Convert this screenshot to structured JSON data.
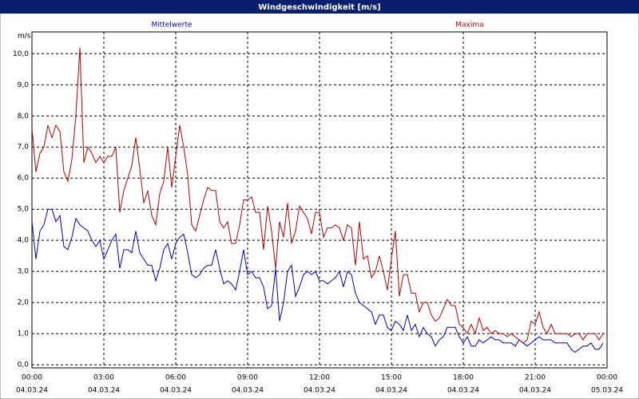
{
  "chart_data": {
    "type": "line",
    "title": "Windgeschwindigkeit [m/s]",
    "y_label": "m/s",
    "xlim": [
      0,
      1440
    ],
    "xticks": [
      {
        "value": 0,
        "label": "00:00"
      },
      {
        "value": 180,
        "label": "03:00"
      },
      {
        "value": 360,
        "label": "06:00"
      },
      {
        "value": 540,
        "label": "09:00"
      },
      {
        "value": 720,
        "label": "12:00"
      },
      {
        "value": 900,
        "label": "15:00"
      },
      {
        "value": 1080,
        "label": "18:00"
      },
      {
        "value": 1260,
        "label": "21:00"
      },
      {
        "value": 1440,
        "label": "00:00"
      }
    ],
    "xtick_dates": [
      "04.03.24",
      "04.03.24",
      "04.03.24",
      "04.03.24",
      "04.03.24",
      "04.03.24",
      "04.03.24",
      "04.03.24",
      "05.03.24"
    ],
    "ylim": [
      -0.1,
      10.7
    ],
    "yticks": [
      {
        "value": 0,
        "label": "0,0"
      },
      {
        "value": 1,
        "label": "1,0"
      },
      {
        "value": 2,
        "label": "2,0"
      },
      {
        "value": 3,
        "label": "3,0"
      },
      {
        "value": 4,
        "label": "4,0"
      },
      {
        "value": 5,
        "label": "5,0"
      },
      {
        "value": 6,
        "label": "6,0"
      },
      {
        "value": 7,
        "label": "7,0"
      },
      {
        "value": 8,
        "label": "8,0"
      },
      {
        "value": 9,
        "label": "9,0"
      },
      {
        "value": 10,
        "label": "10,0"
      }
    ],
    "grid": true,
    "x": [
      0,
      10,
      20,
      30,
      40,
      50,
      60,
      70,
      80,
      90,
      100,
      110,
      120,
      130,
      140,
      150,
      160,
      170,
      180,
      190,
      200,
      210,
      220,
      230,
      240,
      250,
      260,
      270,
      280,
      290,
      300,
      310,
      320,
      330,
      340,
      350,
      360,
      370,
      380,
      390,
      400,
      410,
      420,
      430,
      440,
      450,
      460,
      470,
      480,
      490,
      500,
      510,
      520,
      530,
      540,
      550,
      560,
      570,
      580,
      590,
      600,
      610,
      620,
      630,
      640,
      650,
      660,
      670,
      680,
      690,
      700,
      710,
      720,
      730,
      740,
      750,
      760,
      770,
      780,
      790,
      800,
      810,
      820,
      830,
      840,
      850,
      860,
      870,
      880,
      890,
      900,
      910,
      920,
      930,
      940,
      950,
      960,
      970,
      980,
      990,
      1000,
      1010,
      1020,
      1030,
      1040,
      1050,
      1060,
      1070,
      1080,
      1090,
      1100,
      1110,
      1120,
      1130,
      1140,
      1150,
      1160,
      1170,
      1180,
      1190,
      1200,
      1210,
      1220,
      1230,
      1240,
      1250,
      1260,
      1270,
      1280,
      1290,
      1300,
      1310,
      1320,
      1330,
      1340,
      1350,
      1360,
      1370,
      1380,
      1390,
      1400,
      1410,
      1420,
      1430
    ],
    "series": [
      {
        "name": "Mittelwerte",
        "color": "#0000c8",
        "values": [
          4.6,
          3.4,
          4.3,
          4.5,
          5.0,
          5.0,
          4.6,
          4.8,
          3.8,
          3.7,
          4.1,
          4.7,
          4.5,
          4.4,
          4.3,
          4.0,
          3.8,
          4.0,
          3.4,
          3.7,
          4.0,
          4.2,
          3.1,
          3.7,
          3.7,
          3.6,
          4.3,
          3.6,
          3.4,
          3.2,
          3.2,
          2.7,
          3.1,
          3.7,
          3.9,
          3.4,
          3.9,
          4.1,
          4.2,
          3.6,
          2.9,
          2.8,
          2.9,
          3.1,
          3.2,
          3.2,
          3.7,
          3.1,
          2.6,
          2.7,
          2.6,
          2.4,
          3.0,
          3.7,
          2.9,
          3.0,
          2.8,
          2.8,
          2.5,
          1.8,
          1.9,
          3.1,
          1.4,
          2.0,
          3.0,
          3.2,
          2.2,
          2.5,
          2.9,
          3.0,
          2.9,
          3.0,
          2.7,
          2.7,
          2.6,
          2.7,
          2.8,
          3.0,
          2.5,
          3.0,
          2.9,
          2.3,
          2.0,
          1.9,
          1.8,
          1.7,
          1.3,
          1.6,
          1.6,
          1.2,
          1.1,
          1.4,
          1.3,
          1.1,
          1.6,
          1.1,
          1.3,
          0.9,
          1.2,
          1.0,
          0.9,
          0.6,
          0.8,
          0.9,
          1.2,
          1.2,
          1.2,
          0.9,
          0.7,
          0.9,
          0.6,
          0.6,
          0.8,
          0.7,
          0.8,
          0.9,
          0.8,
          0.8,
          0.7,
          0.7,
          0.7,
          0.6,
          0.8,
          0.7,
          0.6,
          0.7,
          0.8,
          0.9,
          0.8,
          0.8,
          0.8,
          0.7,
          0.7,
          0.7,
          0.7,
          0.5,
          0.4,
          0.5,
          0.6,
          0.6,
          0.7,
          0.5,
          0.5,
          0.7
        ]
      },
      {
        "name": "Maxima",
        "color": "#b40000",
        "values": [
          7.6,
          6.2,
          6.8,
          7.0,
          7.7,
          7.3,
          7.7,
          7.5,
          6.2,
          5.9,
          6.6,
          8.0,
          10.2,
          6.5,
          7.0,
          6.8,
          6.5,
          6.7,
          6.5,
          6.7,
          6.7,
          7.0,
          4.9,
          5.6,
          6.0,
          6.4,
          7.3,
          6.3,
          5.2,
          5.6,
          4.8,
          4.5,
          5.5,
          5.9,
          7.0,
          5.7,
          6.7,
          7.7,
          7.0,
          6.1,
          4.5,
          4.3,
          4.8,
          5.3,
          5.7,
          5.6,
          5.6,
          4.6,
          4.4,
          4.6,
          3.9,
          3.9,
          4.5,
          5.3,
          5.3,
          5.4,
          4.9,
          4.9,
          3.7,
          5.1,
          4.3,
          3.1,
          4.6,
          4.1,
          5.2,
          3.9,
          4.3,
          5.1,
          4.9,
          4.7,
          4.2,
          4.9,
          4.9,
          4.1,
          4.4,
          4.4,
          4.5,
          4.4,
          4.0,
          4.5,
          4.4,
          3.2,
          4.6,
          3.4,
          3.5,
          2.8,
          3.0,
          3.5,
          3.0,
          2.4,
          3.4,
          4.3,
          2.2,
          2.9,
          2.9,
          2.3,
          2.3,
          1.7,
          2.0,
          2.0,
          1.6,
          1.4,
          1.5,
          1.8,
          2.1,
          1.9,
          1.9,
          1.3,
          1.2,
          1.0,
          1.3,
          1.0,
          1.5,
          1.1,
          1.2,
          1.0,
          1.1,
          1.0,
          1.0,
          0.9,
          1.0,
          0.9,
          0.8,
          0.7,
          0.8,
          1.4,
          1.3,
          1.7,
          1.2,
          1.0,
          1.3,
          1.0,
          1.0,
          1.0,
          1.0,
          0.9,
          1.0,
          1.0,
          0.8,
          1.0,
          1.0,
          1.0,
          0.8,
          1.0
        ]
      }
    ]
  }
}
